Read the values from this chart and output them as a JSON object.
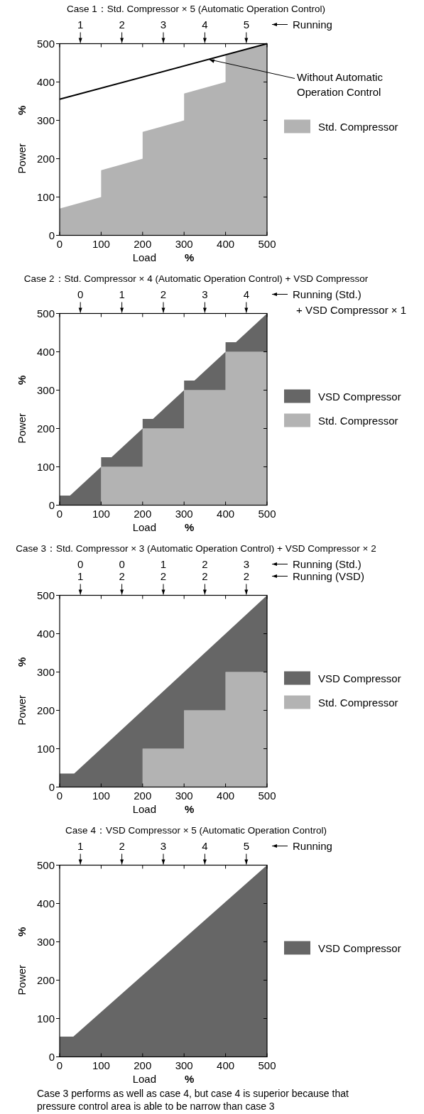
{
  "chart_data": [
    {
      "type": "area",
      "title": "Case 1：Std. Compressor × 5 (Automatic Operation Control)",
      "xlabel": "Load %",
      "ylabel": "Power %",
      "x2label": "Running",
      "xlim": [
        0,
        500
      ],
      "ylim": [
        0,
        500
      ],
      "xticks": [
        0,
        100,
        200,
        300,
        400,
        500
      ],
      "yticks": [
        0,
        100,
        200,
        300,
        400,
        500
      ],
      "x2lim": [
        0.5,
        5.5
      ],
      "x2ticks": [
        1,
        2,
        3,
        4,
        5
      ],
      "legend": "right",
      "annotations": [
        {
          "text": "Without Automatic Operation Control",
          "x": 360,
          "y": 459
        }
      ],
      "series": [
        {
          "name": "Std. Compressor",
          "color": "#b3b3b3",
          "x": [
            0,
            100,
            100,
            200,
            200,
            300,
            300,
            400,
            400,
            500
          ],
          "values": [
            70,
            100,
            170,
            200,
            270,
            300,
            370,
            400,
            470,
            500
          ]
        },
        {
          "type": "line",
          "color": "#000000",
          "x": [
            0,
            500
          ],
          "values": [
            355,
            500
          ]
        }
      ]
    },
    {
      "type": "area",
      "stacked": true,
      "title": "Case 2：Std. Compressor × 4 (Automatic Operation Control) + VSD Compressor",
      "xlabel": "Load %",
      "ylabel": "Power %",
      "x2label": "Running (Std.)\n+ VSD Compressor × 1",
      "xlim": [
        0,
        500
      ],
      "ylim": [
        0,
        500
      ],
      "xticks": [
        0,
        100,
        200,
        300,
        400,
        500
      ],
      "yticks": [
        0,
        100,
        200,
        300,
        400,
        500
      ],
      "x2lim": [
        -0.5,
        4.5
      ],
      "x2ticks": [
        0,
        1,
        2,
        3,
        4
      ],
      "legend": "right",
      "series": [
        {
          "name": "Std. Compressor",
          "color": "#b3b3b3",
          "x": [
            0,
            25,
            100,
            100,
            125,
            200,
            200,
            225,
            300,
            300,
            325,
            400,
            400,
            425,
            500
          ],
          "values": [
            0,
            0,
            0,
            100,
            100,
            100,
            200,
            200,
            200,
            300,
            300,
            300,
            400,
            400,
            400
          ]
        },
        {
          "name": "VSD Compressor",
          "color": "#666666",
          "x": [
            0,
            25,
            100,
            100,
            125,
            200,
            200,
            225,
            300,
            300,
            325,
            400,
            400,
            425,
            500
          ],
          "values": [
            25,
            25,
            100,
            25,
            25,
            100,
            25,
            25,
            100,
            25,
            25,
            100,
            25,
            25,
            100
          ]
        }
      ]
    },
    {
      "type": "area",
      "stacked": true,
      "title": "Case 3：Std. Compressor × 3 (Automatic Operation Control) + VSD Compressor × 2",
      "xlabel": "Load %",
      "ylabel": "Power %",
      "x2label": "Running (Std.)",
      "xlim": [
        0,
        500
      ],
      "ylim": [
        0,
        500
      ],
      "xticks": [
        0,
        100,
        200,
        300,
        400,
        500
      ],
      "yticks": [
        0,
        100,
        200,
        300,
        400,
        500
      ],
      "legend": "right",
      "annotations": [
        "0",
        "0",
        "1",
        "2",
        "3",
        "1",
        "2",
        "2",
        "2",
        "2",
        "Running (VSD)"
      ],
      "series": [
        {
          "name": "Std. Compressor",
          "color": "#b3b3b3",
          "x": [
            0,
            35,
            200,
            200,
            300,
            300,
            400,
            400,
            500
          ],
          "values": [
            0,
            0,
            0,
            100,
            100,
            200,
            200,
            300,
            300
          ]
        },
        {
          "name": "VSD Compressor",
          "color": "#666666",
          "x": [
            0,
            35,
            200,
            200,
            300,
            300,
            400,
            400,
            500
          ],
          "values": [
            35,
            35,
            200,
            100,
            200,
            100,
            200,
            100,
            200
          ]
        }
      ]
    },
    {
      "type": "area",
      "title": "Case 4：VSD Compressor × 5 (Automatic Operation Control)",
      "xlabel": "Load %",
      "ylabel": "Power %",
      "x2label": "Running",
      "xlim": [
        0,
        500
      ],
      "ylim": [
        0,
        500
      ],
      "xticks": [
        0,
        100,
        200,
        300,
        400,
        500
      ],
      "yticks": [
        0,
        100,
        200,
        300,
        400,
        500
      ],
      "x2lim": [
        0.5,
        5.5
      ],
      "x2ticks": [
        1,
        2,
        3,
        4,
        5
      ],
      "legend": "right",
      "annotations": [
        "Case 3 performs as well as case 4, but case 4 is superior because that pressure control area is able to be narrow than case 3"
      ],
      "series": [
        {
          "name": "VSD Compressor",
          "color": "#666666",
          "x": [
            0,
            33,
            500
          ],
          "values": [
            53,
            53,
            500
          ]
        }
      ]
    }
  ]
}
